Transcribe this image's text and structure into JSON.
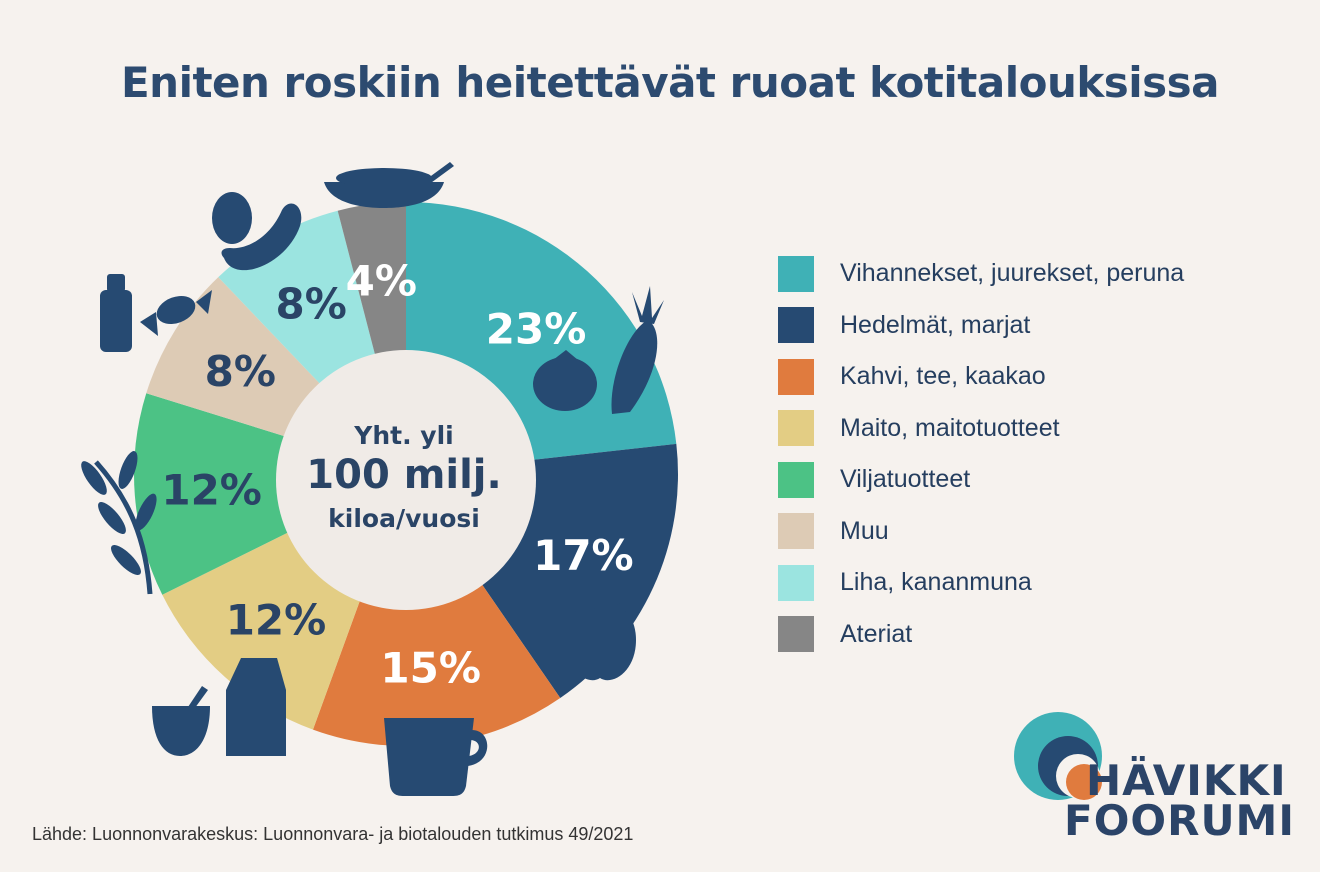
{
  "title": "Eniten roskiin heitettävät ruoat kotitalouksissa",
  "center": {
    "line1": "Yht. yli",
    "line2": "100 milj.",
    "line3": "kiloa/vuosi"
  },
  "source": "Lähde: Luonnonvarakeskus: Luonnonvara- ja biotalouden tutkimus 49/2021",
  "logo": {
    "line1": "HÄVIKKI",
    "line2": "FOORUMI"
  },
  "chart_data": {
    "type": "pie",
    "categories": [
      "Vihannekset, juurekset, peruna",
      "Hedelmät, marjat",
      "Kahvi, tee, kaakao",
      "Maito, maitotuotteet",
      "Viljatuotteet",
      "Muu",
      "Liha, kananmuna",
      "Ateriat"
    ],
    "values": [
      23,
      17,
      15,
      12,
      12,
      8,
      8,
      4
    ],
    "labels": [
      "23%",
      "17%",
      "15%",
      "12%",
      "12%",
      "8%",
      "8%",
      "4%"
    ],
    "colors": [
      "#3fb1b6",
      "#264a72",
      "#e07b3e",
      "#e3cd84",
      "#4cc285",
      "#ddcbb5",
      "#9be4e0",
      "#868686"
    ],
    "label_colors": [
      "#ffffff",
      "#ffffff",
      "#ffffff",
      "#2a4466",
      "#2a4466",
      "#2a4466",
      "#2a4466",
      "#ffffff"
    ],
    "legend_position": "right",
    "donut": true
  },
  "icons": [
    "carrot-icon",
    "tomato-icon",
    "apple-icon",
    "cup-icon",
    "milk-carton-icon",
    "bowl-icon",
    "grain-icon",
    "bottle-icon",
    "candy-icon",
    "egg-icon",
    "sausage-icon",
    "meal-plate-icon"
  ]
}
